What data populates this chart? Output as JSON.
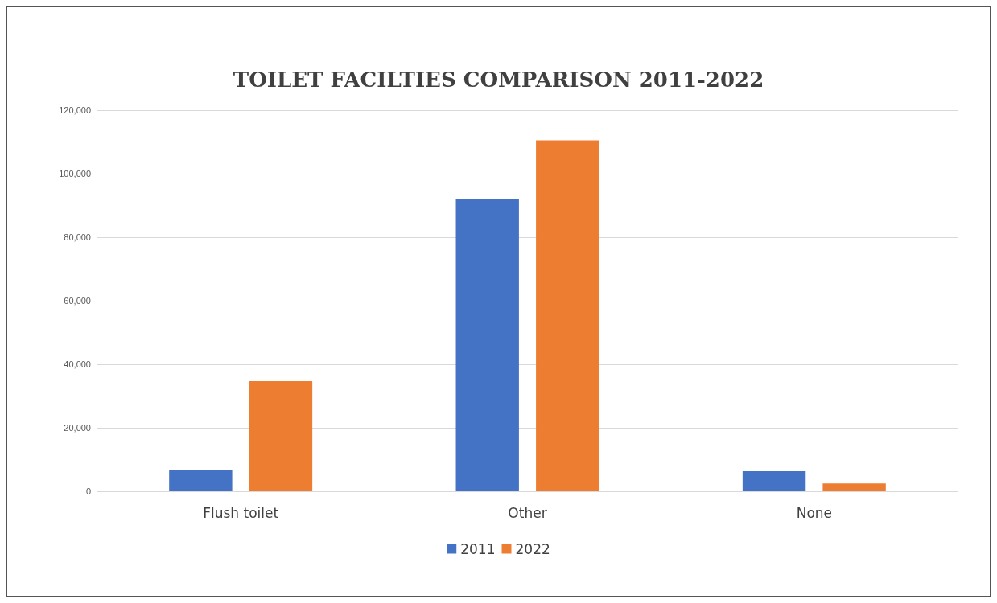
{
  "chart_data": {
    "type": "bar",
    "title": "TOILET FACILTIES COMPARISON 2011-2022",
    "categories": [
      "Flush toilet",
      "Other",
      "None"
    ],
    "series": [
      {
        "name": "2011",
        "color": "#4472c4",
        "values": [
          6600,
          91900,
          6300
        ]
      },
      {
        "name": "2022",
        "color": "#ed7d31",
        "values": [
          34700,
          110500,
          2500
        ]
      }
    ],
    "ylim": [
      0,
      120000
    ],
    "yticks": [
      {
        "value": 0,
        "label": "0"
      },
      {
        "value": 20000,
        "label": "20,000"
      },
      {
        "value": 40000,
        "label": "40,000"
      },
      {
        "value": 60000,
        "label": "60,000"
      },
      {
        "value": 80000,
        "label": "80,000"
      },
      {
        "value": 100000,
        "label": "100,000"
      },
      {
        "value": 120000,
        "label": "120,000"
      }
    ],
    "grid": true,
    "legend": "bottom"
  }
}
